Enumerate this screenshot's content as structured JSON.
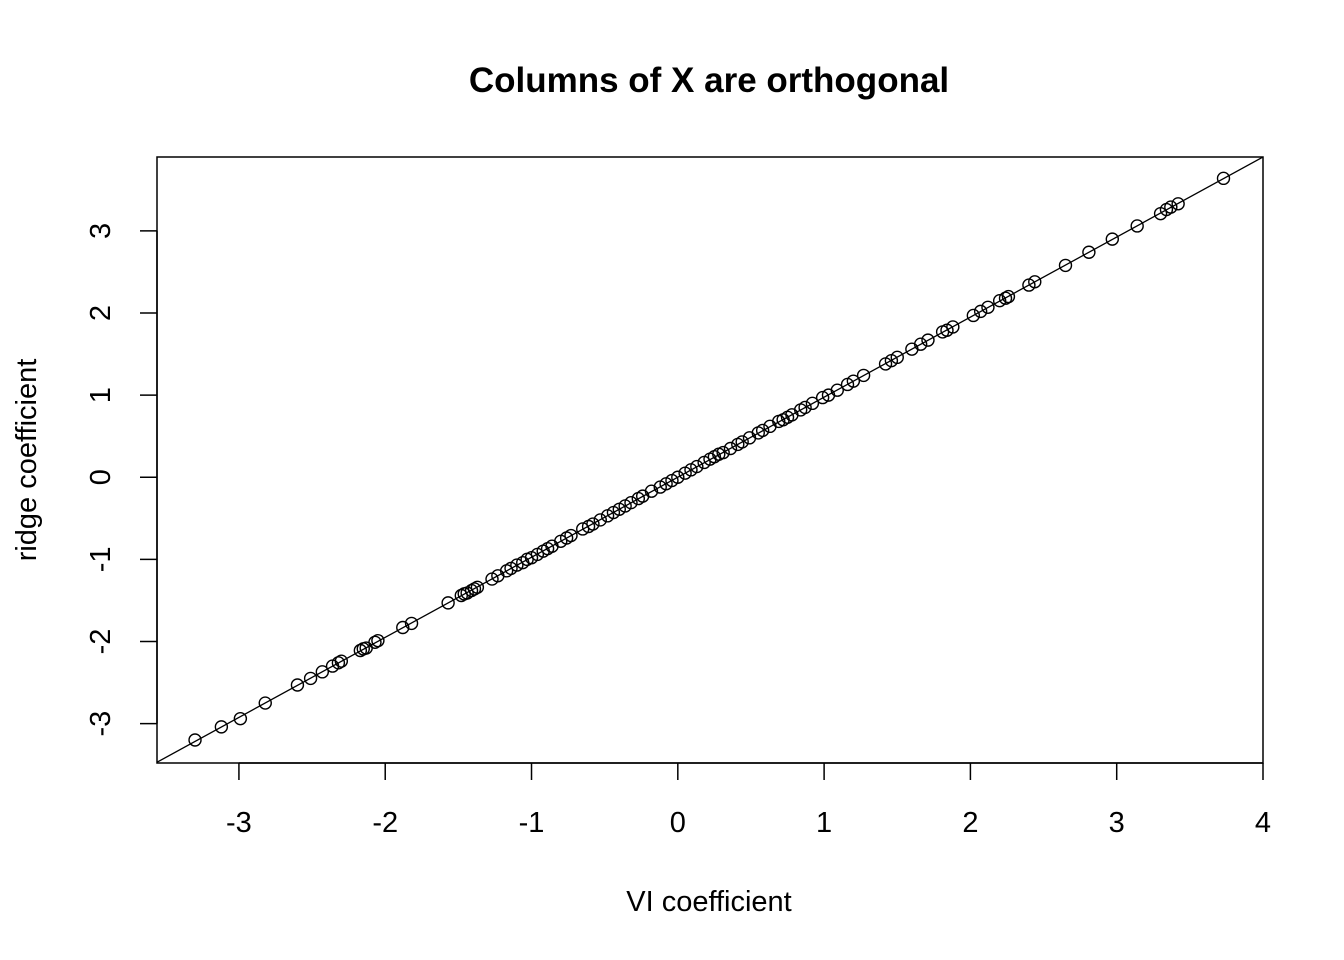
{
  "chart_data": {
    "type": "scatter",
    "title": "Columns of X are orthogonal",
    "xlabel": "VI coefficient",
    "ylabel": "ridge coefficient",
    "xlim": [
      -3.56,
      4.0
    ],
    "ylim": [
      -3.48,
      3.9
    ],
    "x_ticks": [
      -3,
      -2,
      -1,
      0,
      1,
      2,
      3,
      4
    ],
    "x_tick_labels": [
      "-3",
      "-2",
      "-1",
      "0",
      "1",
      "2",
      "3",
      "4"
    ],
    "y_ticks": [
      -3,
      -2,
      -1,
      0,
      1,
      2,
      3
    ],
    "y_tick_labels": [
      "-3",
      "-2",
      "-1",
      "0",
      "1",
      "2",
      "3"
    ],
    "grid": false,
    "reference_line": {
      "slope": 0.975,
      "intercept": 0
    },
    "points": [
      [
        -3.3,
        -3.2
      ],
      [
        -3.12,
        -3.04
      ],
      [
        -2.99,
        -2.94
      ],
      [
        -2.82,
        -2.75
      ],
      [
        -2.6,
        -2.53
      ],
      [
        -2.51,
        -2.45
      ],
      [
        -2.43,
        -2.37
      ],
      [
        -2.36,
        -2.3
      ],
      [
        -2.32,
        -2.26
      ],
      [
        -2.3,
        -2.24
      ],
      [
        -2.17,
        -2.11
      ],
      [
        -2.15,
        -2.09
      ],
      [
        -2.13,
        -2.08
      ],
      [
        -2.07,
        -2.01
      ],
      [
        -2.05,
        -1.99
      ],
      [
        -1.88,
        -1.83
      ],
      [
        -1.82,
        -1.78
      ],
      [
        -1.57,
        -1.53
      ],
      [
        -1.48,
        -1.44
      ],
      [
        -1.46,
        -1.42
      ],
      [
        -1.44,
        -1.41
      ],
      [
        -1.41,
        -1.38
      ],
      [
        -1.39,
        -1.36
      ],
      [
        -1.37,
        -1.34
      ],
      [
        -1.27,
        -1.24
      ],
      [
        -1.23,
        -1.2
      ],
      [
        -1.17,
        -1.14
      ],
      [
        -1.14,
        -1.11
      ],
      [
        -1.1,
        -1.07
      ],
      [
        -1.06,
        -1.04
      ],
      [
        -1.03,
        -1.0
      ],
      [
        -1.0,
        -0.98
      ],
      [
        -0.96,
        -0.94
      ],
      [
        -0.92,
        -0.9
      ],
      [
        -0.89,
        -0.87
      ],
      [
        -0.86,
        -0.84
      ],
      [
        -0.8,
        -0.78
      ],
      [
        -0.76,
        -0.74
      ],
      [
        -0.73,
        -0.71
      ],
      [
        -0.65,
        -0.63
      ],
      [
        -0.61,
        -0.6
      ],
      [
        -0.58,
        -0.57
      ],
      [
        -0.53,
        -0.52
      ],
      [
        -0.48,
        -0.47
      ],
      [
        -0.44,
        -0.43
      ],
      [
        -0.4,
        -0.39
      ],
      [
        -0.36,
        -0.35
      ],
      [
        -0.32,
        -0.31
      ],
      [
        -0.27,
        -0.26
      ],
      [
        -0.24,
        -0.23
      ],
      [
        -0.18,
        -0.17
      ],
      [
        -0.12,
        -0.12
      ],
      [
        -0.08,
        -0.08
      ],
      [
        -0.04,
        -0.04
      ],
      [
        0.0,
        0.0
      ],
      [
        0.05,
        0.05
      ],
      [
        0.09,
        0.09
      ],
      [
        0.13,
        0.13
      ],
      [
        0.18,
        0.18
      ],
      [
        0.22,
        0.22
      ],
      [
        0.25,
        0.25
      ],
      [
        0.28,
        0.28
      ],
      [
        0.31,
        0.3
      ],
      [
        0.36,
        0.35
      ],
      [
        0.41,
        0.4
      ],
      [
        0.44,
        0.43
      ],
      [
        0.49,
        0.48
      ],
      [
        0.55,
        0.54
      ],
      [
        0.58,
        0.57
      ],
      [
        0.63,
        0.62
      ],
      [
        0.69,
        0.68
      ],
      [
        0.72,
        0.7
      ],
      [
        0.75,
        0.73
      ],
      [
        0.78,
        0.76
      ],
      [
        0.84,
        0.82
      ],
      [
        0.87,
        0.85
      ],
      [
        0.92,
        0.9
      ],
      [
        0.99,
        0.97
      ],
      [
        1.03,
        1.0
      ],
      [
        1.09,
        1.06
      ],
      [
        1.16,
        1.13
      ],
      [
        1.2,
        1.17
      ],
      [
        1.27,
        1.24
      ],
      [
        1.42,
        1.38
      ],
      [
        1.46,
        1.42
      ],
      [
        1.5,
        1.46
      ],
      [
        1.6,
        1.56
      ],
      [
        1.66,
        1.62
      ],
      [
        1.71,
        1.67
      ],
      [
        1.81,
        1.77
      ],
      [
        1.84,
        1.79
      ],
      [
        1.88,
        1.83
      ],
      [
        2.02,
        1.97
      ],
      [
        2.07,
        2.02
      ],
      [
        2.12,
        2.07
      ],
      [
        2.2,
        2.15
      ],
      [
        2.24,
        2.18
      ],
      [
        2.26,
        2.2
      ],
      [
        2.4,
        2.34
      ],
      [
        2.44,
        2.38
      ],
      [
        2.65,
        2.58
      ],
      [
        2.81,
        2.74
      ],
      [
        2.97,
        2.9
      ],
      [
        3.14,
        3.06
      ],
      [
        3.3,
        3.21
      ],
      [
        3.34,
        3.26
      ],
      [
        3.37,
        3.29
      ],
      [
        3.42,
        3.33
      ],
      [
        3.73,
        3.64
      ]
    ]
  }
}
